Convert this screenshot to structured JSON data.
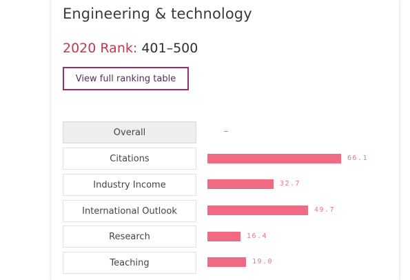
{
  "subject": {
    "title": "Engineering & technology"
  },
  "rank": {
    "label": "2020 Rank:",
    "value": "401–500"
  },
  "view_button": {
    "label": "View full ranking table"
  },
  "accent_color": "#f06a83",
  "button_border_color": "#9b2a6e",
  "rank_label_color": "#c0394f",
  "overall": {
    "label": "Overall",
    "value": "–"
  },
  "metrics": [
    {
      "label": "Citations",
      "value": 66.1,
      "value_text": "66.1"
    },
    {
      "label": "Industry Income",
      "value": 32.7,
      "value_text": "32.7"
    },
    {
      "label": "International Outlook",
      "value": 49.7,
      "value_text": "49.7"
    },
    {
      "label": "Research",
      "value": 16.4,
      "value_text": "16.4"
    },
    {
      "label": "Teaching",
      "value": 19.0,
      "value_text": "19.0"
    }
  ]
}
